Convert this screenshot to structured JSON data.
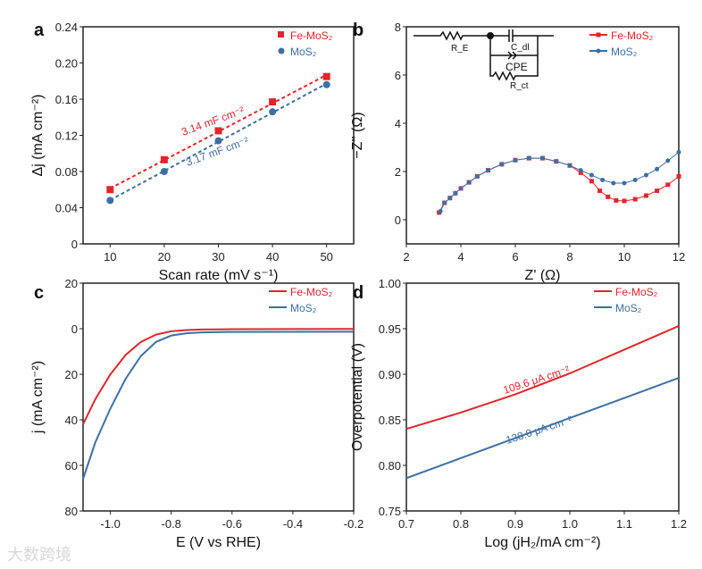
{
  "colors": {
    "fe": "#e0262b",
    "mos": "#3d6fa3",
    "axis": "#222222"
  },
  "watermark": "大数跨境",
  "chart_data": [
    {
      "panel": "a",
      "type": "scatter",
      "xlabel": "Scan rate (mV s⁻¹)",
      "ylabel": "Δj (mA cm⁻²)",
      "xlim": [
        5,
        55
      ],
      "ylim": [
        0,
        0.24
      ],
      "xticks": [
        10,
        20,
        30,
        40,
        50
      ],
      "xtick_labels": [
        "10",
        "20",
        "30",
        "40",
        "50"
      ],
      "yticks": [
        0,
        0.04,
        0.08,
        0.12,
        0.16,
        0.2,
        0.24
      ],
      "ytick_labels": [
        "0",
        "0.04",
        "0.08",
        "0.12",
        "0.16",
        "0.20",
        "0.24"
      ],
      "legend": "top-right",
      "series": [
        {
          "name": "Fe-MoS₂",
          "color": "fe",
          "marker": "square",
          "fit": "dashed",
          "x": [
            10,
            20,
            30,
            40,
            50
          ],
          "y": [
            0.06,
            0.093,
            0.125,
            0.157,
            0.185
          ]
        },
        {
          "name": "MoS₂",
          "color": "mos",
          "marker": "circle",
          "fit": "dashed",
          "x": [
            10,
            20,
            30,
            40,
            50
          ],
          "y": [
            0.048,
            0.08,
            0.114,
            0.146,
            0.176
          ]
        }
      ],
      "annotations": [
        "3.14 mF cm⁻²",
        "3.17 mF cm⁻²"
      ]
    },
    {
      "panel": "b",
      "type": "line",
      "xlabel": "Z' (Ω)",
      "ylabel": "−Z'' (Ω)",
      "xlim": [
        2,
        12
      ],
      "ylim": [
        -1,
        8
      ],
      "xticks": [
        2,
        4,
        6,
        8,
        10,
        12
      ],
      "xtick_labels": [
        "2",
        "4",
        "6",
        "8",
        "10",
        "12"
      ],
      "yticks": [
        0,
        2,
        4,
        6,
        8
      ],
      "ytick_labels": [
        "0",
        "2",
        "4",
        "6",
        "8"
      ],
      "legend": "top-right",
      "series": [
        {
          "name": "Fe-MoS₂",
          "color": "fe",
          "marker": "square",
          "x": [
            3.2,
            3.4,
            3.6,
            3.8,
            4.0,
            4.3,
            4.6,
            5.0,
            5.5,
            6.0,
            6.5,
            7.0,
            7.5,
            8.0,
            8.4,
            8.8,
            9.1,
            9.4,
            9.7,
            10.0,
            10.4,
            10.8,
            11.2,
            11.6,
            12.0
          ],
          "y": [
            0.3,
            0.7,
            0.9,
            1.1,
            1.3,
            1.55,
            1.8,
            2.05,
            2.3,
            2.47,
            2.55,
            2.55,
            2.42,
            2.25,
            1.95,
            1.6,
            1.2,
            0.95,
            0.8,
            0.78,
            0.85,
            1.0,
            1.2,
            1.45,
            1.8
          ]
        },
        {
          "name": "MoS₂",
          "color": "mos",
          "marker": "circle",
          "x": [
            3.25,
            3.4,
            3.6,
            3.8,
            4.0,
            4.3,
            4.6,
            5.0,
            5.5,
            6.0,
            6.5,
            7.0,
            7.5,
            8.0,
            8.4,
            8.8,
            9.2,
            9.6,
            10.0,
            10.4,
            10.8,
            11.2,
            11.6,
            12.0
          ],
          "y": [
            0.35,
            0.7,
            0.9,
            1.1,
            1.3,
            1.55,
            1.8,
            2.05,
            2.3,
            2.47,
            2.55,
            2.55,
            2.42,
            2.25,
            2.05,
            1.85,
            1.65,
            1.52,
            1.52,
            1.65,
            1.85,
            2.1,
            2.45,
            2.8
          ]
        }
      ],
      "inset": {
        "labels": [
          "R_E",
          "C_dl",
          "CPE",
          "R_ct"
        ]
      }
    },
    {
      "panel": "c",
      "type": "line",
      "xlabel": "E (V vs RHE)",
      "ylabel": "j (mA cm⁻²)",
      "xlim": [
        -1.09,
        -0.2
      ],
      "ylim": [
        -20,
        80
      ],
      "y_inverted": true,
      "xticks": [
        -1.0,
        -0.8,
        -0.6,
        -0.4,
        -0.2
      ],
      "xtick_labels": [
        "-1.0",
        "-0.8",
        "-0.6",
        "-0.4",
        "-0.2"
      ],
      "yticks": [
        -20,
        0,
        20,
        40,
        60,
        80
      ],
      "ytick_labels": [
        "20",
        "0",
        "20",
        "40",
        "60",
        "80"
      ],
      "legend": "top-right",
      "series": [
        {
          "name": "Fe-MoS₂",
          "color": "fe",
          "x": [
            -1.09,
            -1.05,
            -1.0,
            -0.95,
            -0.9,
            -0.85,
            -0.8,
            -0.75,
            -0.7,
            -0.6,
            -0.2
          ],
          "y": [
            42,
            31,
            20,
            11.5,
            5.8,
            2.6,
            1.1,
            0.6,
            0.35,
            0.2,
            0.1
          ]
        },
        {
          "name": "MoS₂",
          "color": "mos",
          "x": [
            -1.09,
            -1.05,
            -1.0,
            -0.95,
            -0.9,
            -0.85,
            -0.8,
            -0.75,
            -0.7,
            -0.6,
            -0.2
          ],
          "y": [
            66,
            50,
            35,
            22,
            12,
            5.8,
            3.0,
            2.0,
            1.6,
            1.4,
            1.3
          ]
        }
      ]
    },
    {
      "panel": "d",
      "type": "line",
      "xlabel": "Log (jH₂/mA cm⁻²)",
      "ylabel": "Overpotential (V)",
      "xlim": [
        0.7,
        1.2
      ],
      "ylim": [
        0.75,
        1.0
      ],
      "xticks": [
        0.7,
        0.8,
        0.9,
        1.0,
        1.1,
        1.2
      ],
      "xtick_labels": [
        "0.7",
        "0.8",
        "0.9",
        "1.0",
        "1.1",
        "1.2"
      ],
      "yticks": [
        0.75,
        0.8,
        0.85,
        0.9,
        0.95,
        1.0
      ],
      "ytick_labels": [
        "0.75",
        "0.80",
        "0.85",
        "0.90",
        "0.95",
        "1.00"
      ],
      "legend": "top-right",
      "series": [
        {
          "name": "Fe-MoS₂",
          "color": "fe",
          "x": [
            0.7,
            0.8,
            0.9,
            1.0,
            1.1,
            1.2
          ],
          "y": [
            0.84,
            0.858,
            0.878,
            0.901,
            0.927,
            0.953
          ]
        },
        {
          "name": "MoS₂",
          "color": "mos",
          "x": [
            0.7,
            0.8,
            0.9,
            1.0,
            1.1,
            1.2
          ],
          "y": [
            0.786,
            0.808,
            0.83,
            0.852,
            0.874,
            0.896
          ]
        }
      ],
      "annotations": [
        "109.6 μA cm⁻²",
        "138.0 μA cm⁻²"
      ]
    }
  ]
}
